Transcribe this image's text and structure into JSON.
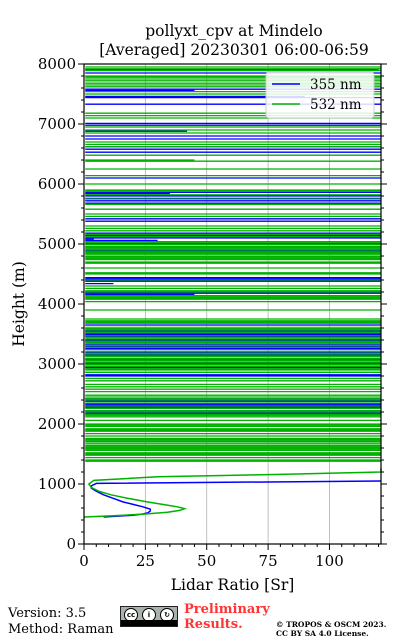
{
  "chart_data": {
    "type": "line",
    "title": "pollyxt_cpv at Mindelo",
    "subtitle": "[Averaged] 20230301 06:00-06:59",
    "xlabel": "Lidar Ratio [Sr]",
    "ylabel": "Height (m)",
    "xlim": [
      0,
      121
    ],
    "ylim": [
      0,
      8000
    ],
    "xticks": [
      "0",
      "25",
      "50",
      "75",
      "100"
    ],
    "yticks": [
      "0",
      "1000",
      "2000",
      "3000",
      "4000",
      "5000",
      "6000",
      "7000",
      "8000"
    ],
    "grid": "vertical",
    "legend_position": "top-right",
    "series": [
      {
        "name": "355 nm",
        "color": "#0000ff",
        "profile": [
          [
            450,
            8
          ],
          [
            480,
            20
          ],
          [
            500,
            24
          ],
          [
            520,
            26
          ],
          [
            550,
            27
          ],
          [
            580,
            27
          ],
          [
            620,
            24
          ],
          [
            660,
            20
          ],
          [
            700,
            16
          ],
          [
            760,
            12
          ],
          [
            820,
            8
          ],
          [
            880,
            5
          ],
          [
            930,
            3
          ],
          [
            970,
            3
          ],
          [
            1010,
            5
          ],
          [
            1050,
            121
          ]
        ],
        "layers": [
          [
            7900,
            120
          ],
          [
            7850,
            121
          ],
          [
            7580,
            121
          ],
          [
            7560,
            45
          ],
          [
            7460,
            90
          ],
          [
            7440,
            121
          ],
          [
            7330,
            121
          ],
          [
            7010,
            121
          ],
          [
            6980,
            121
          ],
          [
            6880,
            42
          ],
          [
            6800,
            121
          ],
          [
            6750,
            121
          ],
          [
            6620,
            121
          ],
          [
            6580,
            121
          ],
          [
            6530,
            121
          ],
          [
            6100,
            121
          ],
          [
            5860,
            121
          ],
          [
            5840,
            35
          ],
          [
            5800,
            121
          ],
          [
            5760,
            121
          ],
          [
            5720,
            121
          ],
          [
            5680,
            121
          ],
          [
            5420,
            121
          ],
          [
            5380,
            121
          ],
          [
            5180,
            121
          ],
          [
            5140,
            121
          ],
          [
            5100,
            121
          ],
          [
            5080,
            4
          ],
          [
            5060,
            30
          ],
          [
            5000,
            121
          ],
          [
            4880,
            121
          ],
          [
            4440,
            121
          ],
          [
            4420,
            121
          ],
          [
            4400,
            121
          ],
          [
            4380,
            121
          ],
          [
            4340,
            12
          ],
          [
            4200,
            121
          ],
          [
            4180,
            121
          ],
          [
            4160,
            45
          ],
          [
            3650,
            121
          ],
          [
            3600,
            121
          ],
          [
            3560,
            121
          ],
          [
            3540,
            121
          ],
          [
            3500,
            121
          ],
          [
            3480,
            121
          ],
          [
            3450,
            121
          ],
          [
            3400,
            121
          ],
          [
            3380,
            121
          ],
          [
            3350,
            121
          ],
          [
            3320,
            121
          ],
          [
            3300,
            121
          ],
          [
            3260,
            121
          ],
          [
            3240,
            121
          ],
          [
            3200,
            121
          ],
          [
            3160,
            121
          ],
          [
            3140,
            121
          ],
          [
            3080,
            121
          ],
          [
            3030,
            121
          ],
          [
            3000,
            121
          ],
          [
            2960,
            121
          ],
          [
            2940,
            121
          ],
          [
            2860,
            121
          ],
          [
            2820,
            121
          ],
          [
            2800,
            121
          ],
          [
            2420,
            121
          ],
          [
            2380,
            121
          ],
          [
            2340,
            121
          ],
          [
            2320,
            121
          ],
          [
            2280,
            121
          ],
          [
            2220,
            121
          ],
          [
            2180,
            121
          ],
          [
            2150,
            121
          ]
        ]
      },
      {
        "name": "532 nm",
        "color": "#00b200",
        "profile": [
          [
            450,
            0
          ],
          [
            470,
            12
          ],
          [
            500,
            25
          ],
          [
            530,
            34
          ],
          [
            560,
            39
          ],
          [
            590,
            41
          ],
          [
            620,
            38
          ],
          [
            660,
            32
          ],
          [
            700,
            26
          ],
          [
            760,
            18
          ],
          [
            820,
            11
          ],
          [
            880,
            6
          ],
          [
            940,
            3
          ],
          [
            1000,
            2
          ],
          [
            1060,
            4
          ],
          [
            1120,
            30
          ],
          [
            1160,
            80
          ],
          [
            1200,
            121
          ],
          [
            1260,
            121
          ]
        ],
        "layers": [
          [
            7950,
            121
          ],
          [
            7920,
            121
          ],
          [
            7890,
            121
          ],
          [
            7800,
            121
          ],
          [
            7780,
            121
          ],
          [
            7750,
            121
          ],
          [
            7720,
            121
          ],
          [
            7680,
            121
          ],
          [
            7650,
            121
          ],
          [
            7620,
            121
          ],
          [
            7540,
            121
          ],
          [
            7500,
            121
          ],
          [
            7180,
            121
          ],
          [
            7140,
            121
          ],
          [
            7100,
            121
          ],
          [
            6950,
            121
          ],
          [
            6900,
            121
          ],
          [
            6850,
            121
          ],
          [
            6700,
            121
          ],
          [
            6660,
            121
          ],
          [
            6620,
            121
          ],
          [
            6480,
            121
          ],
          [
            6400,
            45
          ],
          [
            6380,
            121
          ],
          [
            6250,
            121
          ],
          [
            6140,
            121
          ],
          [
            6000,
            121
          ],
          [
            5900,
            121
          ],
          [
            5880,
            121
          ],
          [
            5820,
            121
          ],
          [
            5750,
            121
          ],
          [
            5660,
            121
          ],
          [
            5580,
            121
          ],
          [
            5500,
            121
          ],
          [
            5460,
            121
          ],
          [
            5300,
            121
          ],
          [
            5260,
            121
          ],
          [
            5220,
            121
          ],
          [
            5160,
            121
          ],
          [
            5120,
            121
          ],
          [
            5040,
            121
          ],
          [
            5020,
            121
          ],
          [
            4990,
            121
          ],
          [
            4960,
            121
          ],
          [
            4940,
            121
          ],
          [
            4920,
            121
          ],
          [
            4900,
            121
          ],
          [
            4870,
            121
          ],
          [
            4850,
            121
          ],
          [
            4830,
            121
          ],
          [
            4800,
            121
          ],
          [
            4780,
            121
          ],
          [
            4760,
            121
          ],
          [
            4740,
            121
          ],
          [
            4700,
            121
          ],
          [
            4680,
            121
          ],
          [
            4600,
            121
          ],
          [
            4520,
            121
          ],
          [
            4500,
            121
          ],
          [
            4400,
            121
          ],
          [
            4300,
            121
          ],
          [
            4260,
            121
          ],
          [
            4220,
            121
          ],
          [
            4200,
            121
          ],
          [
            4140,
            121
          ],
          [
            4120,
            121
          ],
          [
            4100,
            121
          ],
          [
            4080,
            121
          ],
          [
            4040,
            121
          ],
          [
            3900,
            121
          ],
          [
            3750,
            121
          ],
          [
            3720,
            121
          ],
          [
            3700,
            121
          ],
          [
            3680,
            121
          ],
          [
            3640,
            121
          ],
          [
            3600,
            121
          ],
          [
            3580,
            121
          ],
          [
            3550,
            121
          ],
          [
            3520,
            121
          ],
          [
            3470,
            121
          ],
          [
            3420,
            121
          ],
          [
            3380,
            121
          ],
          [
            3360,
            121
          ],
          [
            3310,
            121
          ],
          [
            3280,
            121
          ],
          [
            3240,
            121
          ],
          [
            3180,
            121
          ],
          [
            3150,
            121
          ],
          [
            3120,
            121
          ],
          [
            3090,
            121
          ],
          [
            3060,
            121
          ],
          [
            3020,
            121
          ],
          [
            2990,
            121
          ],
          [
            2960,
            121
          ],
          [
            2920,
            121
          ],
          [
            2900,
            121
          ],
          [
            2860,
            121
          ],
          [
            2760,
            121
          ],
          [
            2720,
            121
          ],
          [
            2660,
            121
          ],
          [
            2620,
            121
          ],
          [
            2580,
            121
          ],
          [
            2540,
            121
          ],
          [
            2480,
            121
          ],
          [
            2450,
            121
          ],
          [
            2420,
            121
          ],
          [
            2400,
            121
          ],
          [
            2350,
            121
          ],
          [
            2300,
            121
          ],
          [
            2260,
            121
          ],
          [
            2220,
            121
          ],
          [
            2200,
            121
          ],
          [
            2160,
            121
          ],
          [
            2120,
            121
          ],
          [
            2060,
            121
          ],
          [
            2000,
            121
          ],
          [
            1980,
            121
          ],
          [
            1960,
            121
          ],
          [
            1920,
            121
          ],
          [
            1900,
            121
          ],
          [
            1880,
            121
          ],
          [
            1840,
            121
          ],
          [
            1800,
            121
          ],
          [
            1760,
            121
          ],
          [
            1740,
            121
          ],
          [
            1720,
            121
          ],
          [
            1700,
            121
          ],
          [
            1670,
            121
          ],
          [
            1640,
            121
          ],
          [
            1620,
            121
          ],
          [
            1600,
            121
          ],
          [
            1580,
            121
          ],
          [
            1560,
            121
          ],
          [
            1520,
            121
          ],
          [
            1500,
            121
          ],
          [
            1480,
            121
          ],
          [
            1440,
            121
          ],
          [
            1400,
            121
          ],
          [
            1380,
            121
          ]
        ]
      }
    ]
  },
  "footer": {
    "version": "Version: 3.5",
    "method": "Method: Raman",
    "preliminary": "Preliminary Results.",
    "copyright": "© TROPOS & OSCM 2023. CC BY SA 4.0 License."
  },
  "badge": {
    "cc": "cc",
    "by": "BY",
    "sa": "SA"
  }
}
